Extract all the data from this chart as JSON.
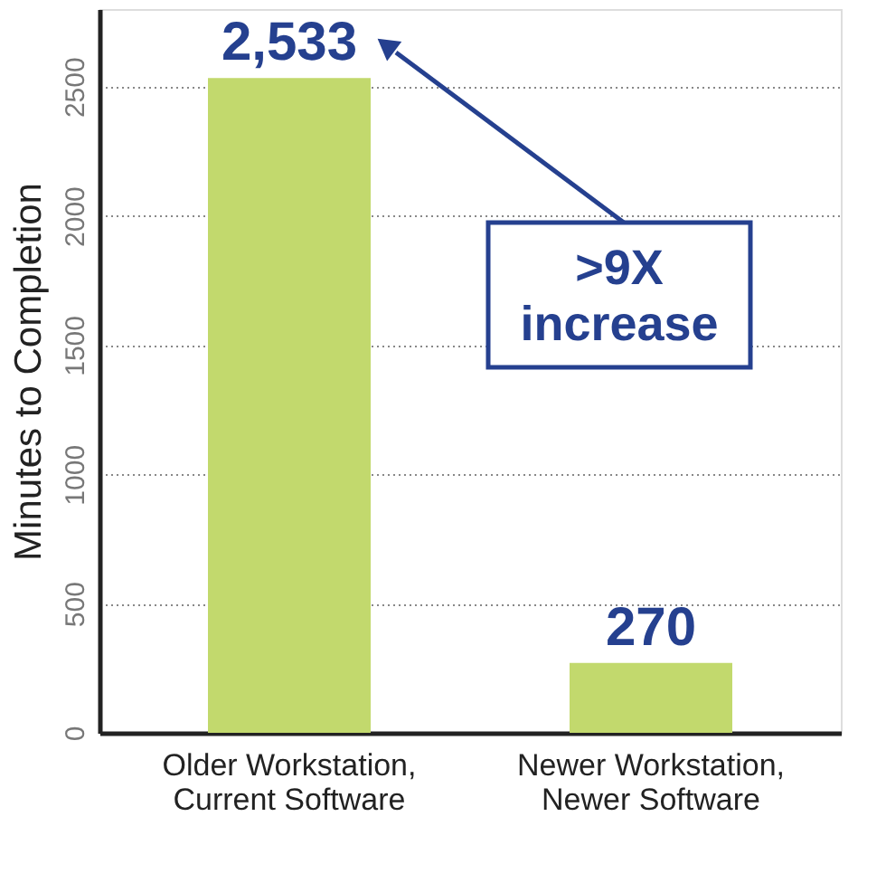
{
  "chart_data": {
    "type": "bar",
    "ylabel": "Minutes to Completion",
    "categories": [
      "Older Workstation, Current Software",
      "Newer Workstation, Newer Software"
    ],
    "values": [
      2533,
      270
    ],
    "value_labels": [
      "2,533",
      "270"
    ],
    "color": "#c2d96d",
    "ylim": [
      0,
      2800
    ],
    "yticks": [
      0,
      500,
      1000,
      1500,
      2000,
      2500
    ],
    "grid": "y",
    "annotations": [
      ">9X increase"
    ]
  }
}
